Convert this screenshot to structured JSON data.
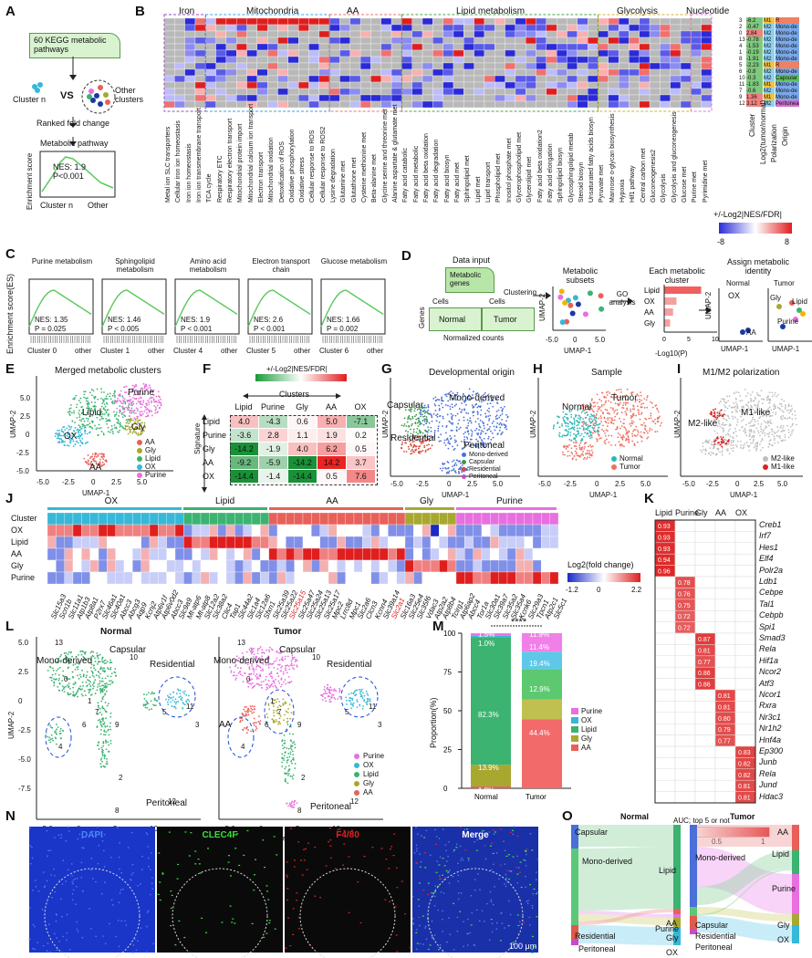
{
  "panels": {
    "A": {
      "letter": "A",
      "box_text": "60 KEGG metabolic pathways",
      "cluster_n": "Cluster n",
      "vs": "VS",
      "other_clusters": "Other clusters",
      "ranked": "Ranked fold change",
      "pathway": "Metabolic pathway",
      "ylabel": "Enrichment score",
      "nes": "NES: 1.9",
      "p": "P<0.001",
      "x1": "Cluster n",
      "x2": "Other"
    },
    "B": {
      "letter": "B",
      "groups": [
        "Iron",
        "Mitochondria",
        "AA",
        "Lipid metabolism",
        "Glycolysis",
        "Nucleotide"
      ],
      "pathways": [
        "Metal ion SLC transporters",
        "Cellular iron ion homeostasis",
        "Iron ion homeostasis",
        "Iron ion transmembrane transport",
        "TCA cycle",
        "Respiratory ETC",
        "Respiratory electron transport",
        "Mitochondrial protein import",
        "Mitochondrial calcium ion transport",
        "Electron transport",
        "Mitochondrial oxidation",
        "Detoxification of ROS",
        "Oxidative phosphorylation",
        "Oxidative stress",
        "Cellular response to ROS",
        "Cellular response to ROS2",
        "Lysine degradation",
        "Glutamine met",
        "Glutathione met",
        "Cysteine methionine met",
        "Beta-alanine met",
        "Glycine serine and threonine met",
        "Alanine aspartate & glutamate met",
        "Fatty acid catabolic",
        "Fatty acid metabolic",
        "Fatty acid beta oxidation",
        "Fatty acid degradation",
        "Fatty acid biosyn",
        "Fatty acid met",
        "Sphingolipid met",
        "Lipid met",
        "Lipid transport",
        "Phospholipid met",
        "Inositol phosphate met",
        "Glycerophospholipid met",
        "Glycerolipid met",
        "Fatty acid beta oxidation2",
        "Fatty acid elongation",
        "Sphingolipid biosyn",
        "Glycosphingolipid metab",
        "Steroid biosyn",
        "Unsaturated fatty acids biosyn",
        "Pyruvate met",
        "Mannose o-glycan biosynthesis",
        "Hypoxia",
        "Hif1 pathway",
        "Central carbon met",
        "Gluconeogenesis2",
        "Glycolysis",
        "Glycolysis and gluconeogenesis",
        "Glucose met",
        "Purine met",
        "Pyrimidine met"
      ],
      "right_labels": [
        "Cluster",
        "Log2(tumor/normal)",
        "Polarization",
        "Origin"
      ],
      "cluster_ids": [
        "3",
        "2",
        "0",
        "13",
        "4",
        "1",
        "8",
        "5",
        "6",
        "10",
        "11",
        "7",
        "9",
        "12"
      ],
      "log2": [
        "-6.2",
        "-0.47",
        "2.84",
        "-0.78",
        "-1.53",
        "-0.19",
        "-1.91",
        "-2.23",
        "-0.8",
        "-0.3",
        "-1.83",
        "-0.6",
        "1.36",
        "3.12"
      ],
      "polarization": [
        "M1",
        "M2",
        "M2",
        "M2",
        "M2",
        "M2",
        "M2",
        "M1",
        "M2",
        "M2",
        "M1",
        "M2",
        "M1",
        "M2"
      ],
      "origin": [
        "R",
        "Mono-de",
        "Mono-de",
        "Mono-de",
        "Mono-de",
        "Mono-de",
        "Mono-de",
        "R",
        "Mono-de",
        "Capsular",
        "Mono-de",
        "Mono-de",
        "Mono-de",
        "Peritoneal"
      ],
      "legend_title": "+/-Log2|NES/FDR|",
      "legend_min": "-8",
      "legend_max": "8"
    },
    "C": {
      "letter": "C",
      "ylabel": "Enrichment score(ES)",
      "plots": [
        {
          "title": "Purine metabolism",
          "nes": "NES: 1.35",
          "p": "P = 0.025",
          "x1": "Cluster 0",
          "x2": "other"
        },
        {
          "title": "Sphingolipid metabolism",
          "nes": "NES: 1.46",
          "p": "P < 0.005",
          "x1": "Cluster 1",
          "x2": "other"
        },
        {
          "title": "Amino acid metabolism",
          "nes": "NES: 1.9",
          "p": "P < 0.001",
          "x1": "Cluster 4",
          "x2": "other"
        },
        {
          "title": "Electron transport chain",
          "nes": "NES: 2.6",
          "p": "P < 0.001",
          "x1": "Cluster 5",
          "x2": "other"
        },
        {
          "title": "Glucose metabolism",
          "nes": "NES: 1.66",
          "p": "P = 0.002",
          "x1": "Cluster 6",
          "x2": "other"
        }
      ]
    },
    "D": {
      "letter": "D",
      "data_input": "Data input",
      "metabolic_genes": "Metabolic genes",
      "cells1": "Cells",
      "cells2": "Cells",
      "genes": "Genes",
      "normal": "Normal",
      "tumor": "Tumor",
      "normalized": "Normalized counts",
      "clustering": "Clustering",
      "subsets": "Metabolic subsets",
      "go": "GO analysis",
      "each": "Each metabolic cluster",
      "assign": "Assign metabolic identity",
      "bar_labels": [
        "Lipid",
        "OX",
        "AA",
        "Gly"
      ],
      "bar_values": [
        7.5,
        2.5,
        1.8,
        1.2
      ],
      "bar_xlabel": "-Log10(P)",
      "bar_ticks": [
        "0",
        "5",
        "10"
      ],
      "umap_x": "UMAP-1",
      "umap_y": "UMAP-2",
      "umap_xticks": [
        "-5.0",
        "0",
        "5.0"
      ],
      "mini_labels": [
        "Normal",
        "Tumor",
        "OX",
        "AA",
        "Gly",
        "Lipid",
        "Purine"
      ]
    },
    "E": {
      "letter": "E",
      "title": "Merged metabolic clusters",
      "labels": [
        "Lipid",
        "Purine",
        "OX",
        "Gly",
        "AA"
      ],
      "legend": [
        "AA",
        "Gly",
        "Lipid",
        "OX",
        "Purine"
      ],
      "xlabel": "UMAP-1",
      "ylabel": "UMAP-2",
      "yticks": [
        "5.0",
        "2.5",
        "0",
        "-2.5",
        "-5.0"
      ],
      "xticks": [
        "-5.0",
        "-2.5",
        "0",
        "2.5",
        "5.0"
      ]
    },
    "F": {
      "letter": "F",
      "legend_title": "+/-Log2|NES/FDR|",
      "clusters_label": "Clusters",
      "signature_label": "Signature",
      "cols": [
        "Lipid",
        "Purine",
        "Gly",
        "AA",
        "OX"
      ],
      "rows": [
        "Lipid",
        "Purine",
        "Gly",
        "AA",
        "OX"
      ],
      "values": [
        [
          "4.0",
          "-4.3",
          "0.6",
          "5.0",
          "-7.1"
        ],
        [
          "-3.6",
          "2.8",
          "1.1",
          "1.9",
          "0.2"
        ],
        [
          "-14.2",
          "-1.9",
          "4.0",
          "6.2",
          "0.5"
        ],
        [
          "-9.2",
          "-5.9",
          "-14.2",
          "14.2",
          "3.7"
        ],
        [
          "-14.4",
          "-1.4",
          "-14.4",
          "0.5",
          "7.6"
        ]
      ]
    },
    "G": {
      "letter": "G",
      "title": "Developmental origin",
      "labels": [
        "Mono-derived",
        "Capsular",
        "Residential",
        "Peritoneal"
      ],
      "legend": [
        "Mono-derived",
        "Capsular",
        "Residential",
        "Peritoneal"
      ],
      "xlabel": "UMAP-1",
      "ylabel": "UMAP-2",
      "xticks": [
        "-5.0",
        "-2.5",
        "0",
        "2.5",
        "5.0"
      ]
    },
    "H": {
      "letter": "H",
      "title": "Sample",
      "labels": [
        "Normal",
        "Tumor"
      ],
      "legend": [
        "Normal",
        "Tumor"
      ],
      "xlabel": "UMAP-1",
      "ylabel": "UMAP-2",
      "xticks": [
        "-5.0",
        "-2.5",
        "0",
        "2.5",
        "5.0"
      ]
    },
    "I": {
      "letter": "I",
      "title": "M1/M2 polarization",
      "labels": [
        "M1-like",
        "M2-like"
      ],
      "legend": [
        "M2-like",
        "M1-like"
      ],
      "xlabel": "UMAP-1",
      "ylabel": "UMAP-2",
      "xticks": [
        "-5.0",
        "-2.5",
        "0",
        "2.5",
        "5.0"
      ]
    },
    "J": {
      "letter": "J",
      "groups": [
        "OX",
        "Lipid",
        "AA",
        "Gly",
        "Purine"
      ],
      "rows": [
        "Cluster",
        "OX",
        "Lipid",
        "AA",
        "Gly",
        "Purine"
      ],
      "legend_title": "Log2(fold change)",
      "legend_ticks": [
        "-1.2",
        "0",
        "2.2"
      ],
      "genes": [
        "Slc15a3",
        "Scn1b",
        "Slc11a1",
        "Atp1b3",
        "Atp8a1",
        "P2rx7",
        "Slc46a1",
        "Slc40a1",
        "Abcc3",
        "Abcg3",
        "Aqp9",
        "Kcnj2",
        "Atp6v1f",
        "Atp6v0d2",
        "Abcc3",
        "Slc9a9",
        "Mt-atp6",
        "Mt-atp8",
        "Slc12a2",
        "Slc38a2",
        "Clic4",
        "Tap1",
        "Slc44a2",
        "Slc1a4",
        "Slc12a6",
        "Sfxn1",
        "Slc25a39",
        "Slc25a22",
        "Slc25a15",
        "Slc25a47",
        "Slc25a24",
        "Slc25a13",
        "Slc25a17",
        "Mpc2",
        "Lrrc8d",
        "Mpc1",
        "Slc2a6",
        "Clcn3",
        "Kcnn4",
        "Slc39a14",
        "Slc2a1",
        "Slc16a3",
        "Slc25e4",
        "Slc35f6",
        "Vdac3",
        "Atp2a2",
        "Atp8b4",
        "Tcirg1",
        "Atp6ap2",
        "Abcc4",
        "Tor1a",
        "Slc30a1",
        "Slc39a7",
        "Slc35a2",
        "Slc35a4",
        "Kcnk6",
        "Slc29a3",
        "Tpcn1",
        "Atp2c1",
        "Slc5c1"
      ],
      "red_genes": [
        "Slc25a15",
        "Slc2a1"
      ]
    },
    "K": {
      "letter": "K",
      "cols": [
        "Lipid",
        "Purine",
        "Gly",
        "AA",
        "OX"
      ],
      "genes": [
        "Creb1",
        "Irf7",
        "Hes1",
        "Elf4",
        "Polr2a",
        "Ldb1",
        "Cebpe",
        "Tal1",
        "Cebpb",
        "Spi1",
        "Smad3",
        "Rela",
        "Hif1a",
        "Ncor2",
        "Atf3",
        "Ncor1",
        "Rxra",
        "Nr3c1",
        "Nr1h2",
        "Hnf4a",
        "Ep300",
        "Junb",
        "Rela",
        "Jund",
        "Hdac3"
      ],
      "values": [
        "0.93",
        "0.93",
        "0.93",
        "0.94",
        "0.96",
        "0.78",
        "0.76",
        "0.75",
        "0.72",
        "0.72",
        "0.87",
        "0.81",
        "0.77",
        "0.86",
        "0.86",
        "0.81",
        "0.81",
        "0.80",
        "0.79",
        "0.77",
        "0.83",
        "0.82",
        "0.82",
        "0.81",
        "0.81"
      ],
      "legend_title": "AUC; top 5 or not",
      "legend_ticks": [
        "0.5",
        "1"
      ]
    },
    "L": {
      "letter": "L",
      "normal_title": "Normal",
      "tumor_title": "Tumor",
      "labels_normal": [
        "Mono-derived",
        "Capsular",
        "Residential",
        "Peritoneal"
      ],
      "labels_tumor": [
        "Mono-derived",
        "Capsular",
        "Residential",
        "AA",
        "Peritoneal"
      ],
      "cluster_ids": [
        "13",
        "10",
        "0",
        "1",
        "7",
        "6",
        "9",
        "5",
        "3",
        "11",
        "4",
        "2",
        "8",
        "12"
      ],
      "legend": [
        "Purine",
        "OX",
        "Lipid",
        "Gly",
        "AA"
      ],
      "xlabel": "UMAP-1",
      "ylabel": "UMAP-2",
      "xticks": [
        "-5.0",
        "0",
        "5",
        "10"
      ],
      "yticks": [
        "5.0",
        "2.5",
        "0",
        "-2.5",
        "-5.0",
        "-7.5"
      ]
    },
    "M": {
      "letter": "M",
      "ylabel": "Proportion(%)",
      "sig": "****",
      "yticks": [
        "0",
        "25",
        "50",
        "75",
        "100"
      ],
      "legend": [
        "Purine",
        "OX",
        "Lipid",
        "Gly",
        "AA"
      ]
    },
    "N": {
      "letter": "N",
      "titles": [
        "DAPI",
        "CLEC4F",
        "F4/80",
        "Merge"
      ],
      "scale": "100 μm"
    },
    "O": {
      "letter": "O",
      "normal_title": "Normal",
      "tumor_title": "Tumor",
      "normal_left": [
        "Capsular",
        "Mono-derived",
        "Residential",
        "Peritoneal"
      ],
      "normal_right": [
        "Lipid",
        "AA",
        "Purine",
        "Gly",
        "OX"
      ],
      "tumor_left": [
        "Mono-derived",
        "Capsular",
        "Residential",
        "Peritoneal"
      ],
      "tumor_right": [
        "AA",
        "Lipid",
        "Purine",
        "Gly",
        "OX"
      ]
    }
  },
  "colors": {
    "AA": "#e8605a",
    "Gly": "#a8a830",
    "Lipid": "#3cb371",
    "OX": "#36b8d8",
    "Purine": "#e86fe0",
    "Mono": "#4a6fd8",
    "Capsular": "#3a9a4a",
    "Residential": "#d94a3a",
    "Peritoneal": "#c84ac8",
    "Normal": "#2ab8b8",
    "Tumor": "#f07060",
    "M1": "#e02020",
    "M2": "#bfbfbf"
  },
  "chart_data": [
    {
      "type": "bar",
      "title": "Metabolic cluster GO enrichment (panel D)",
      "categories": [
        "Lipid",
        "OX",
        "AA",
        "Gly"
      ],
      "values": [
        7.5,
        2.5,
        1.8,
        1.2
      ],
      "xlabel": "-Log10(P)",
      "ylabel": "",
      "xlim": [
        0,
        10
      ]
    },
    {
      "type": "bar",
      "title": "Proportion of metabolic clusters (panel M)",
      "categories": [
        "Normal",
        "Tumor"
      ],
      "series": [
        {
          "name": "AA",
          "values": [
            1.2,
            44.4
          ]
        },
        {
          "name": "Gly",
          "values": [
            13.9,
            12.9
          ]
        },
        {
          "name": "Lipid",
          "values": [
            82.3,
            19.4
          ]
        },
        {
          "name": "OX",
          "values": [
            1.0,
            11.4
          ]
        },
        {
          "name": "Purine",
          "values": [
            1.5,
            11.9
          ]
        }
      ],
      "labels": {
        "Normal": [
          "1.2%",
          "13.9%",
          "82.3%",
          "1.0%",
          "1.5%"
        ],
        "Tumor": [
          "44.4%",
          "12.9%",
          "19.4%",
          "11.4%",
          "11.9%"
        ]
      },
      "xlabel": "",
      "ylabel": "Proportion(%)",
      "ylim": [
        0,
        100
      ]
    },
    {
      "type": "heatmap",
      "title": "Signature vs Clusters (panel F)",
      "rows": [
        "Lipid",
        "Purine",
        "Gly",
        "AA",
        "OX"
      ],
      "cols": [
        "Lipid",
        "Purine",
        "Gly",
        "AA",
        "OX"
      ],
      "values": [
        [
          4.0,
          -4.3,
          0.6,
          5.0,
          -7.1
        ],
        [
          -3.6,
          2.8,
          1.1,
          1.9,
          0.2
        ],
        [
          -14.2,
          -1.9,
          4.0,
          6.2,
          0.5
        ],
        [
          -9.2,
          -5.9,
          -14.2,
          14.2,
          3.7
        ],
        [
          -14.4,
          -1.4,
          -14.4,
          0.5,
          7.6
        ]
      ]
    }
  ]
}
